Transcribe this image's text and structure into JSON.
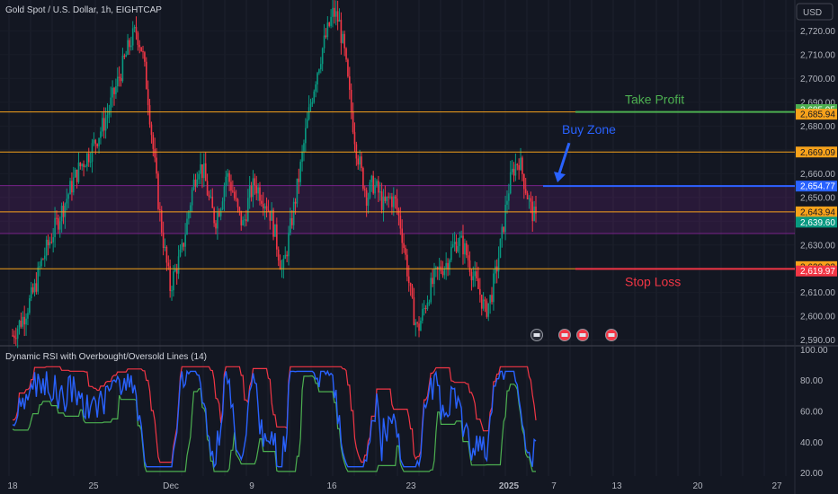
{
  "chart_data": {
    "type": "candlestick",
    "title": "Gold Spot / U.S. Dollar, 1h, EIGHTCAP",
    "currency": "USD",
    "y_ticks": [
      2590,
      2600,
      2610,
      2620,
      2630,
      2640,
      2650,
      2660,
      2670,
      2680,
      2690,
      2700,
      2710,
      2720
    ],
    "y_tick_labels": [
      "2,590.00",
      "2,600.00",
      "2,610.00",
      "2,620.00",
      "2,630.00",
      "2,640.00",
      "2,650.00",
      "2,660.00",
      "2,670.00",
      "2,680.00",
      "2,690.00",
      "2,700.00",
      "2,710.00",
      "2,720.00"
    ],
    "ylim": [
      2588,
      2733
    ],
    "x_ticks": [
      "18",
      "25",
      "Dec",
      "9",
      "16",
      "23",
      "2025",
      "7",
      "13",
      "20",
      "27"
    ],
    "levels": [
      {
        "price": 2685.94,
        "label": "2,685.94",
        "color": "#f7a21b"
      },
      {
        "price": 2669.09,
        "label": "2,669.09",
        "color": "#f7a21b"
      },
      {
        "price": 2643.94,
        "label": "2,643.94",
        "color": "#f7a21b"
      },
      {
        "price": 2620.02,
        "label": "2,620.02",
        "color": "#f7a21b"
      }
    ],
    "zone": {
      "top": 2655.0,
      "bottom": 2634.8,
      "color": "#9c27b0"
    },
    "take_profit": {
      "price": 2685.95,
      "label": "2,685.95",
      "text": "Take Profit",
      "color": "#4caf50"
    },
    "buy_zone": {
      "price": 2654.77,
      "label": "2,654.77",
      "text": "Buy Zone",
      "color": "#2962ff"
    },
    "stop_loss": {
      "price": 2619.97,
      "label": "2,619.97",
      "text": "Stop Loss",
      "color": "#f23645"
    },
    "last_price": {
      "price": 2639.6,
      "label": "2,639.60",
      "color": "#089981"
    },
    "price_path": [
      [
        0,
        2592
      ],
      [
        2,
        2600
      ],
      [
        4,
        2612
      ],
      [
        5,
        2622
      ],
      [
        7,
        2634
      ],
      [
        9,
        2646
      ],
      [
        11,
        2658
      ],
      [
        12,
        2663
      ],
      [
        14,
        2670
      ],
      [
        16,
        2680
      ],
      [
        17,
        2686
      ],
      [
        19,
        2701
      ],
      [
        21,
        2716
      ],
      [
        22,
        2720
      ],
      [
        23,
        2712
      ],
      [
        24,
        2694
      ],
      [
        25,
        2670
      ],
      [
        26,
        2646
      ],
      [
        27,
        2628
      ],
      [
        28,
        2612
      ],
      [
        29,
        2620
      ],
      [
        30,
        2626
      ],
      [
        31,
        2640
      ],
      [
        32,
        2654
      ],
      [
        33,
        2664
      ],
      [
        34,
        2660
      ],
      [
        35,
        2648
      ],
      [
        36,
        2640
      ],
      [
        37,
        2648
      ],
      [
        38,
        2660
      ],
      [
        39,
        2654
      ],
      [
        40,
        2644
      ],
      [
        41,
        2638
      ],
      [
        42,
        2650
      ],
      [
        43,
        2656
      ],
      [
        44,
        2652
      ],
      [
        45,
        2648
      ],
      [
        46,
        2642
      ],
      [
        47,
        2630
      ],
      [
        48,
        2618
      ],
      [
        49,
        2632
      ],
      [
        50,
        2646
      ],
      [
        51,
        2660
      ],
      [
        52,
        2676
      ],
      [
        53,
        2690
      ],
      [
        54,
        2702
      ],
      [
        55,
        2712
      ],
      [
        56,
        2720
      ],
      [
        57,
        2728
      ],
      [
        58,
        2724
      ],
      [
        59,
        2710
      ],
      [
        60,
        2690
      ],
      [
        61,
        2672
      ],
      [
        62,
        2660
      ],
      [
        63,
        2650
      ],
      [
        64,
        2656
      ],
      [
        65,
        2652
      ],
      [
        66,
        2646
      ],
      [
        67,
        2650
      ],
      [
        68,
        2648
      ],
      [
        69,
        2638
      ],
      [
        70,
        2622
      ],
      [
        71,
        2604
      ],
      [
        72,
        2594
      ],
      [
        73,
        2602
      ],
      [
        74,
        2610
      ],
      [
        75,
        2616
      ],
      [
        76,
        2620
      ],
      [
        77,
        2622
      ],
      [
        78,
        2628
      ],
      [
        79,
        2632
      ],
      [
        80,
        2630
      ],
      [
        81,
        2624
      ],
      [
        82,
        2616
      ],
      [
        83,
        2610
      ],
      [
        84,
        2602
      ],
      [
        85,
        2608
      ],
      [
        86,
        2620
      ],
      [
        87,
        2634
      ],
      [
        88,
        2652
      ],
      [
        89,
        2662
      ],
      [
        90,
        2666
      ],
      [
        91,
        2656
      ],
      [
        92,
        2646
      ],
      [
        93,
        2640
      ]
    ],
    "rsi": {
      "title": "Dynamic RSI with Overbought/Oversold Lines (14)",
      "y_ticks": [
        20,
        40,
        60,
        80,
        100
      ],
      "y_tick_labels": [
        "20.00",
        "40.00",
        "60.00",
        "80.00",
        "100.00"
      ],
      "ylim": [
        18,
        102
      ],
      "rsi_color": "#2962ff",
      "overbought_color": "#f23645",
      "oversold_color": "#4caf50"
    }
  }
}
